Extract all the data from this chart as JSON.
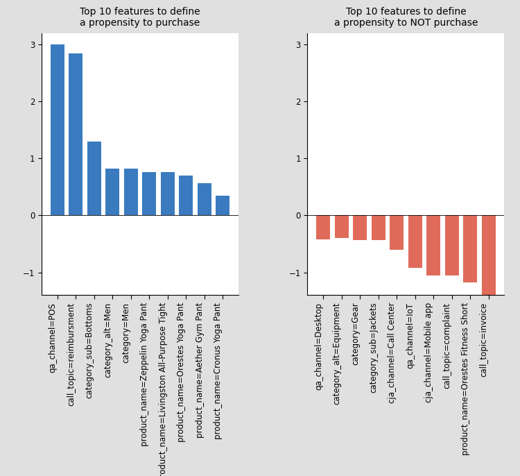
{
  "left_title": "Top 10 features to define\na propensity to purchase",
  "right_title": "Top 10 features to define\na propensity to NOT purchase",
  "left_categories": [
    "qa_channel=POS",
    "call_topic=reimbursment",
    "category_sub=Bottoms",
    "category_alt=Men",
    "category=Men",
    "product_name=Zeppelin Yoga Pant",
    "product_name=Livingston All-Purpose Tight",
    "product_name=Orestes Yoga Pant",
    "product_name=Aether Gym Pant",
    "product_name=Cronus Yoga Pant"
  ],
  "left_values": [
    3.0,
    2.85,
    1.3,
    0.82,
    0.82,
    0.76,
    0.76,
    0.7,
    0.57,
    0.35
  ],
  "right_categories": [
    "qa_channel=Desktop",
    "category_alt=Equipment",
    "category=Gear",
    "category_sub=Jackets",
    "cja_channel=Call Center",
    "qa_channel=IoT",
    "cja_channel=Mobile app",
    "call_topic=complaint",
    "product_name=Orestes Fitness Short",
    "call_topic=invoice"
  ],
  "right_values": [
    -0.42,
    -0.4,
    -0.43,
    -0.43,
    -0.6,
    -0.92,
    -1.05,
    -1.05,
    -1.18,
    -1.55
  ],
  "left_color": "#3a7bbf",
  "right_color": "#e06b5a",
  "ylim": [
    -1.4,
    3.2
  ],
  "bg_color": "#e0e0e0",
  "plot_bg_color": "#ffffff",
  "title_fontsize": 10,
  "tick_fontsize": 8.5
}
